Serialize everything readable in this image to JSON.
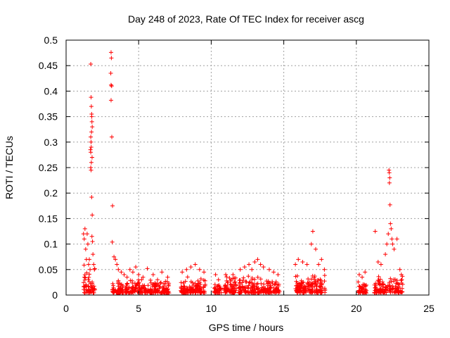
{
  "chart_data": {
    "type": "scatter",
    "title": "Day 248 of 2023, Rate Of TEC Index for receiver ascg",
    "xlabel": "GPS time / hours",
    "ylabel": "ROTI / TECUs",
    "xlim": [
      0,
      25
    ],
    "ylim": [
      0,
      0.5
    ],
    "xticks": [
      0,
      5,
      10,
      15,
      20,
      25
    ],
    "xtick_labels": [
      "0",
      "5",
      "10",
      "15",
      "20",
      "25"
    ],
    "yticks": [
      0,
      0.05,
      0.1,
      0.15,
      0.2,
      0.25,
      0.3,
      0.35,
      0.4,
      0.45,
      0.5
    ],
    "ytick_labels": [
      "0",
      "0.05",
      "0.1",
      "0.15",
      "0.2",
      "0.25",
      "0.3",
      "0.35",
      "0.4",
      "0.45",
      "0.5"
    ],
    "grid": true,
    "marker": "plus",
    "color": "#ff0000",
    "series": [
      {
        "points": [
          [
            1.2,
            0.12
          ],
          [
            1.25,
            0.11
          ],
          [
            1.3,
            0.13
          ],
          [
            1.35,
            0.09
          ],
          [
            1.4,
            0.07
          ],
          [
            1.45,
            0.12
          ],
          [
            1.5,
            0.1
          ],
          [
            1.55,
            0.06
          ],
          [
            1.6,
            0.07
          ],
          [
            1.65,
            0.05
          ],
          [
            1.7,
            0.453
          ],
          [
            1.72,
            0.388
          ],
          [
            1.74,
            0.37
          ],
          [
            1.76,
            0.355
          ],
          [
            1.78,
            0.34
          ],
          [
            1.8,
            0.33
          ],
          [
            1.7,
            0.31
          ],
          [
            1.72,
            0.3
          ],
          [
            1.68,
            0.285
          ],
          [
            1.7,
            0.28
          ],
          [
            1.74,
            0.26
          ],
          [
            1.7,
            0.25
          ],
          [
            1.72,
            0.245
          ],
          [
            1.76,
            0.192
          ],
          [
            1.8,
            0.157
          ],
          [
            1.78,
            0.115
          ],
          [
            1.82,
            0.105
          ],
          [
            1.85,
            0.08
          ],
          [
            1.9,
            0.06
          ],
          [
            1.95,
            0.05
          ],
          [
            1.75,
            0.32
          ],
          [
            1.77,
            0.35
          ],
          [
            1.73,
            0.29
          ],
          [
            1.79,
            0.27
          ],
          [
            3.1,
            0.476
          ],
          [
            3.12,
            0.465
          ],
          [
            3.08,
            0.435
          ],
          [
            3.1,
            0.412
          ],
          [
            3.14,
            0.41
          ],
          [
            3.1,
            0.382
          ],
          [
            3.15,
            0.31
          ],
          [
            3.2,
            0.175
          ],
          [
            3.18,
            0.104
          ],
          [
            3.3,
            0.075
          ],
          [
            3.4,
            0.07
          ],
          [
            3.5,
            0.06
          ],
          [
            3.6,
            0.05
          ],
          [
            3.8,
            0.045
          ],
          [
            4.0,
            0.04
          ],
          [
            4.2,
            0.035
          ],
          [
            4.4,
            0.05
          ],
          [
            4.6,
            0.045
          ],
          [
            4.8,
            0.055
          ],
          [
            5.0,
            0.04
          ],
          [
            5.3,
            0.035
          ],
          [
            5.6,
            0.052
          ],
          [
            6.0,
            0.04
          ],
          [
            6.3,
            0.03
          ],
          [
            6.6,
            0.045
          ],
          [
            7.0,
            0.035
          ],
          [
            8.0,
            0.045
          ],
          [
            8.3,
            0.05
          ],
          [
            8.6,
            0.055
          ],
          [
            8.9,
            0.06
          ],
          [
            9.2,
            0.05
          ],
          [
            9.5,
            0.045
          ],
          [
            10.3,
            0.04
          ],
          [
            10.5,
            0.03
          ],
          [
            11.0,
            0.04
          ],
          [
            11.5,
            0.04
          ],
          [
            12.0,
            0.05
          ],
          [
            12.3,
            0.055
          ],
          [
            12.6,
            0.06
          ],
          [
            12.8,
            0.05
          ],
          [
            13.0,
            0.065
          ],
          [
            13.2,
            0.07
          ],
          [
            13.4,
            0.06
          ],
          [
            13.6,
            0.055
          ],
          [
            14.0,
            0.05
          ],
          [
            14.3,
            0.045
          ],
          [
            14.6,
            0.04
          ],
          [
            15.8,
            0.06
          ],
          [
            16.0,
            0.07
          ],
          [
            16.3,
            0.065
          ],
          [
            16.6,
            0.06
          ],
          [
            16.9,
            0.1
          ],
          [
            17.0,
            0.125
          ],
          [
            17.2,
            0.09
          ],
          [
            17.4,
            0.06
          ],
          [
            17.6,
            0.07
          ],
          [
            17.8,
            0.05
          ],
          [
            20.2,
            0.04
          ],
          [
            20.4,
            0.035
          ],
          [
            20.6,
            0.045
          ],
          [
            21.3,
            0.125
          ],
          [
            21.5,
            0.065
          ],
          [
            21.7,
            0.06
          ],
          [
            22.0,
            0.08
          ],
          [
            22.1,
            0.1
          ],
          [
            22.2,
            0.12
          ],
          [
            22.25,
            0.245
          ],
          [
            22.27,
            0.24
          ],
          [
            22.3,
            0.23
          ],
          [
            22.28,
            0.22
          ],
          [
            22.32,
            0.177
          ],
          [
            22.35,
            0.14
          ],
          [
            22.4,
            0.13
          ],
          [
            22.45,
            0.11
          ],
          [
            22.5,
            0.1
          ],
          [
            22.6,
            0.09
          ],
          [
            22.8,
            0.11
          ],
          [
            23.0,
            0.05
          ],
          [
            23.1,
            0.04
          ]
        ]
      }
    ],
    "clusters": [
      {
        "x": [
          1.2,
          2.0
        ],
        "ymax": 0.06
      },
      {
        "x": [
          3.2,
          7.1
        ],
        "ymax": 0.03
      },
      {
        "x": [
          7.9,
          9.6
        ],
        "ymax": 0.035
      },
      {
        "x": [
          10.2,
          10.7
        ],
        "ymax": 0.025
      },
      {
        "x": [
          10.9,
          14.7
        ],
        "ymax": 0.035
      },
      {
        "x": [
          15.8,
          17.9
        ],
        "ymax": 0.04
      },
      {
        "x": [
          20.1,
          20.7
        ],
        "ymax": 0.03
      },
      {
        "x": [
          21.2,
          23.2
        ],
        "ymax": 0.035
      }
    ]
  }
}
